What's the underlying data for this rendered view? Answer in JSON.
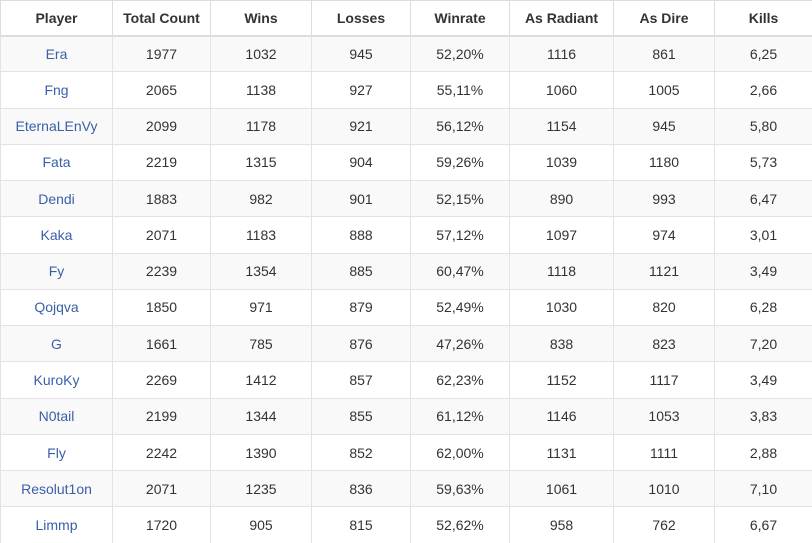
{
  "colors": {
    "link_blue": "#3a5fa9",
    "border": "#dddddd",
    "stripe": "#f9f9f9",
    "header_text": "#333333",
    "cell_text": "#333333"
  },
  "table": {
    "columns": [
      {
        "key": "player",
        "label": "Player"
      },
      {
        "key": "total_count",
        "label": "Total Count"
      },
      {
        "key": "wins",
        "label": "Wins"
      },
      {
        "key": "losses",
        "label": "Losses"
      },
      {
        "key": "winrate",
        "label": "Winrate"
      },
      {
        "key": "as_radiant",
        "label": "As Radiant"
      },
      {
        "key": "as_dire",
        "label": "As Dire"
      },
      {
        "key": "kills",
        "label": "Kills"
      }
    ],
    "rows": [
      [
        "Era",
        "1977",
        "1032",
        "945",
        "52,20%",
        "1116",
        "861",
        "6,25"
      ],
      [
        "Fng",
        "2065",
        "1138",
        "927",
        "55,11%",
        "1060",
        "1005",
        "2,66"
      ],
      [
        "EternaLEnVy",
        "2099",
        "1178",
        "921",
        "56,12%",
        "1154",
        "945",
        "5,80"
      ],
      [
        "Fata",
        "2219",
        "1315",
        "904",
        "59,26%",
        "1039",
        "1180",
        "5,73"
      ],
      [
        "Dendi",
        "1883",
        "982",
        "901",
        "52,15%",
        "890",
        "993",
        "6,47"
      ],
      [
        "Kaka",
        "2071",
        "1183",
        "888",
        "57,12%",
        "1097",
        "974",
        "3,01"
      ],
      [
        "Fy",
        "2239",
        "1354",
        "885",
        "60,47%",
        "1118",
        "1121",
        "3,49"
      ],
      [
        "Qojqva",
        "1850",
        "971",
        "879",
        "52,49%",
        "1030",
        "820",
        "6,28"
      ],
      [
        "G",
        "1661",
        "785",
        "876",
        "47,26%",
        "838",
        "823",
        "7,20"
      ],
      [
        "KuroKy",
        "2269",
        "1412",
        "857",
        "62,23%",
        "1152",
        "1117",
        "3,49"
      ],
      [
        "N0tail",
        "2199",
        "1344",
        "855",
        "61,12%",
        "1146",
        "1053",
        "3,83"
      ],
      [
        "Fly",
        "2242",
        "1390",
        "852",
        "62,00%",
        "1131",
        "1111",
        "2,88"
      ],
      [
        "Resolut1on",
        "2071",
        "1235",
        "836",
        "59,63%",
        "1061",
        "1010",
        "7,10"
      ],
      [
        "Limmp",
        "1720",
        "905",
        "815",
        "52,62%",
        "958",
        "762",
        "6,67"
      ]
    ]
  }
}
